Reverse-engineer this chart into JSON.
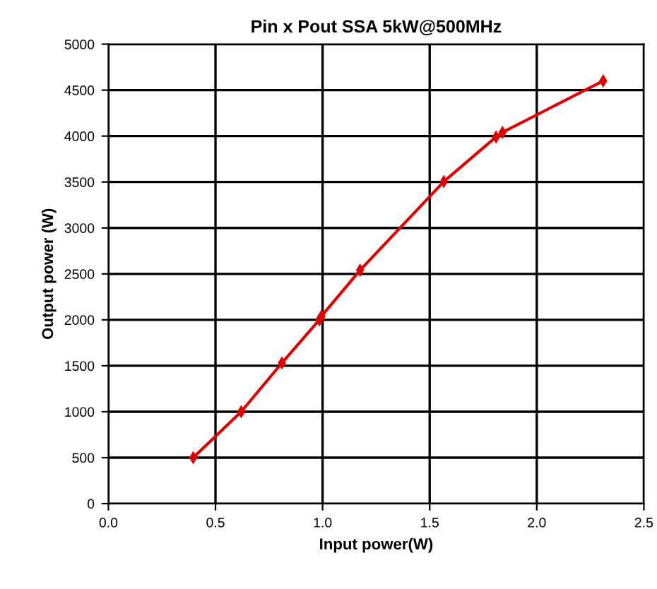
{
  "chart_data": {
    "type": "line",
    "title": "Pin x Pout SSA 5kW@500MHz",
    "xlabel": "Input power(W)",
    "ylabel": "Output power (W)",
    "x": [
      0.396,
      0.62,
      0.81,
      0.985,
      0.995,
      1.175,
      1.566,
      1.81,
      1.84,
      2.31
    ],
    "series": [
      {
        "color": "#e00000",
        "values": [
          500,
          1000,
          1530,
          2000,
          2040,
          2540,
          3505,
          3990,
          4040,
          4600
        ]
      }
    ],
    "xlim": [
      0,
      2.5
    ],
    "xticks": [
      {
        "value": 0,
        "label": "0.0"
      },
      0.5,
      {
        "value": 1,
        "label": "1.0"
      },
      1.5,
      {
        "value": 2,
        "label": "2.0"
      },
      2.5
    ],
    "ylim": [
      0,
      5000
    ],
    "yticks": [
      0,
      500,
      1000,
      1500,
      2000,
      2500,
      3000,
      3500,
      4000,
      4500,
      5000
    ],
    "grid": true,
    "marker": "diamond",
    "line_style": "solid"
  }
}
